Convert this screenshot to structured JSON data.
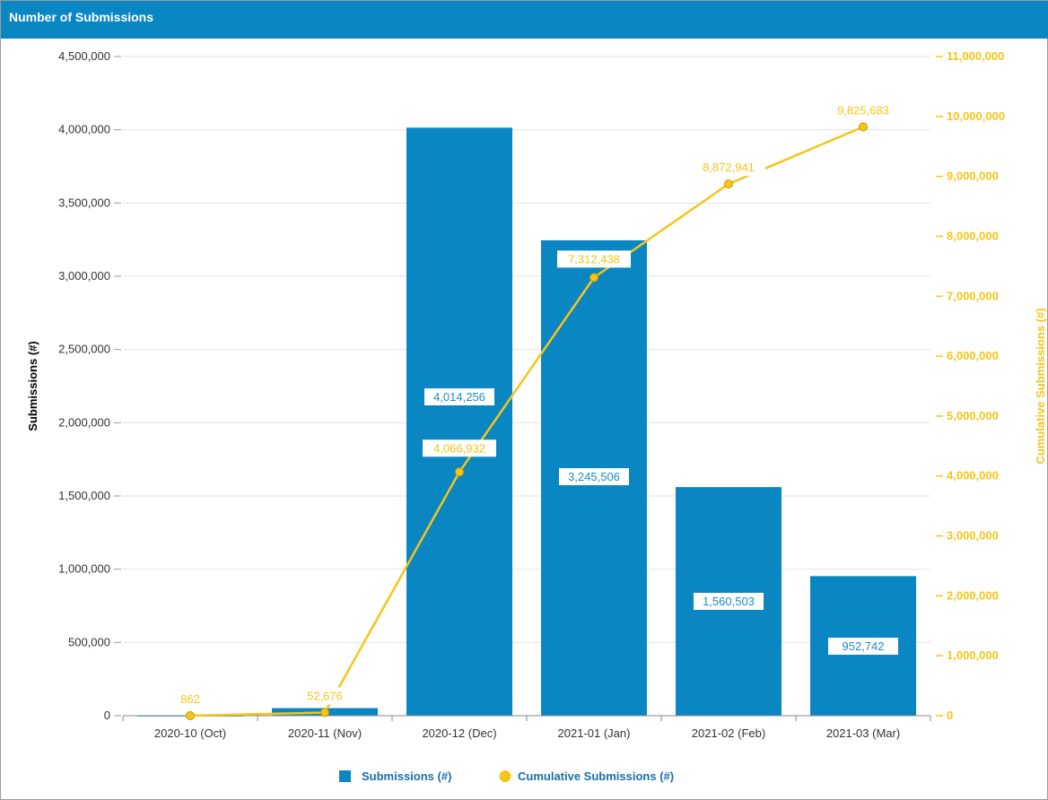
{
  "panel": {
    "title": "Number of Submissions"
  },
  "colors": {
    "header": "#0a86c3",
    "bar": "#0a86c3",
    "line": "#f5c518"
  },
  "chart_data": {
    "type": "bar",
    "categories": [
      "2020-10 (Oct)",
      "2020-11 (Nov)",
      "2020-12 (Dec)",
      "2021-01 (Jan)",
      "2021-02 (Feb)",
      "2021-03 (Mar)"
    ],
    "series": [
      {
        "name": "Submissions (#)",
        "type": "bar",
        "axis": "left",
        "values": [
          862,
          51814,
          4014256,
          3245506,
          1560503,
          952742
        ],
        "labels": [
          "",
          "",
          "4,014,256",
          "3,245,506",
          "1,560,503",
          "952,742"
        ]
      },
      {
        "name": "Cumulative Submissions (#)",
        "type": "line",
        "axis": "right",
        "values": [
          862,
          52676,
          4066932,
          7312438,
          8872941,
          9825683
        ],
        "labels": [
          "862",
          "52,676",
          "4,066,932",
          "7,312,438",
          "8,872,941",
          "9,825,683"
        ]
      }
    ],
    "ylabel": "Submissions (#)",
    "y2label": "Cumulative Submissions (#)",
    "ylim": [
      0,
      4500000
    ],
    "y2lim": [
      0,
      11000000
    ],
    "yticks": [
      "0",
      "500,000",
      "1,000,000",
      "1,500,000",
      "2,000,000",
      "2,500,000",
      "3,000,000",
      "3,500,000",
      "4,000,000",
      "4,500,000"
    ],
    "y2ticks": [
      "0",
      "1,000,000",
      "2,000,000",
      "3,000,000",
      "4,000,000",
      "5,000,000",
      "6,000,000",
      "7,000,000",
      "8,000,000",
      "9,000,000",
      "10,000,000",
      "11,000,000"
    ],
    "grid": true,
    "legend": "bottom-center"
  }
}
